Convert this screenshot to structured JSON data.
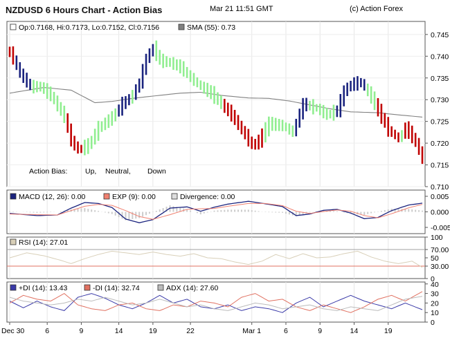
{
  "header": {
    "title": "NZDUSD 6 Hours Chart - Action Bias",
    "timestamp": "Mar 21 11:51 GMT",
    "copyright": "(c) Action Forex"
  },
  "chart_data": [
    {
      "type": "ohlc_bars",
      "panel": "price",
      "ohlc_label": "Op:0.7168, Hi:0.7173, Lo:0.7152, Cl:0.7156",
      "sma_label": "SMA (55): 0.73",
      "ylim": [
        0.71,
        0.748
      ],
      "yticks": [
        "0.745",
        "0.740",
        "0.735",
        "0.730",
        "0.725",
        "0.720",
        "0.715",
        "0.710"
      ],
      "bias_legend": {
        "label": "Action Bias:",
        "up": "Up,",
        "neutral": "Neutral,",
        "down": "Down"
      },
      "colors": {
        "up": "#1a237e",
        "neutral": "#90ee90",
        "down": "#c00000",
        "sma_solid": "#808080",
        "sma_dotted": "#404040"
      },
      "key_points": [
        [
          0,
          0.741
        ],
        [
          3,
          0.736
        ],
        [
          6,
          0.733
        ],
        [
          9,
          0.733
        ],
        [
          12,
          0.731
        ],
        [
          14,
          0.7285
        ],
        [
          16,
          0.726
        ],
        [
          18,
          0.7205
        ],
        [
          20,
          0.7185
        ],
        [
          23,
          0.7195
        ],
        [
          26,
          0.7235
        ],
        [
          30,
          0.726
        ],
        [
          33,
          0.729
        ],
        [
          36,
          0.731
        ],
        [
          38,
          0.734
        ],
        [
          40,
          0.7395
        ],
        [
          42,
          0.742
        ],
        [
          44,
          0.739
        ],
        [
          47,
          0.7385
        ],
        [
          50,
          0.7375
        ],
        [
          53,
          0.735
        ],
        [
          56,
          0.733
        ],
        [
          59,
          0.7315
        ],
        [
          62,
          0.729
        ],
        [
          65,
          0.7265
        ],
        [
          68,
          0.723
        ],
        [
          71,
          0.7195
        ],
        [
          73,
          0.7205
        ],
        [
          76,
          0.7245
        ],
        [
          80,
          0.724
        ],
        [
          83,
          0.7225
        ],
        [
          86,
          0.729
        ],
        [
          90,
          0.728
        ],
        [
          93,
          0.7265
        ],
        [
          96,
          0.7275
        ],
        [
          98,
          0.732
        ],
        [
          100,
          0.7335
        ],
        [
          103,
          0.734
        ],
        [
          106,
          0.7305
        ],
        [
          108,
          0.7275
        ],
        [
          111,
          0.723
        ],
        [
          114,
          0.721
        ],
        [
          116,
          0.7235
        ],
        [
          118,
          0.7215
        ],
        [
          120,
          0.7185
        ],
        [
          121,
          0.716
        ]
      ],
      "bias_segments": [
        [
          0,
          "down"
        ],
        [
          2,
          "up"
        ],
        [
          7,
          "neutral"
        ],
        [
          17,
          "down"
        ],
        [
          22,
          "neutral"
        ],
        [
          32,
          "up"
        ],
        [
          36,
          "neutral"
        ],
        [
          37,
          "up"
        ],
        [
          40,
          "up"
        ],
        [
          43,
          "neutral"
        ],
        [
          60,
          "neutral"
        ],
        [
          63,
          "down"
        ],
        [
          75,
          "neutral"
        ],
        [
          84,
          "up"
        ],
        [
          88,
          "neutral"
        ],
        [
          96,
          "up"
        ],
        [
          100,
          "up"
        ],
        [
          105,
          "neutral"
        ],
        [
          108,
          "down"
        ],
        [
          115,
          "neutral"
        ],
        [
          116,
          "down"
        ]
      ],
      "sma": [
        [
          0,
          0.7315
        ],
        [
          10,
          0.7328
        ],
        [
          18,
          0.7322
        ],
        [
          25,
          0.7293
        ],
        [
          30,
          0.7296
        ],
        [
          36,
          0.7303
        ],
        [
          44,
          0.731
        ],
        [
          50,
          0.7315
        ],
        [
          56,
          0.7317
        ],
        [
          62,
          0.731
        ],
        [
          70,
          0.7304
        ],
        [
          76,
          0.7303
        ],
        [
          82,
          0.7297
        ],
        [
          88,
          0.7288
        ],
        [
          94,
          0.7279
        ],
        [
          100,
          0.7272
        ],
        [
          108,
          0.727
        ],
        [
          114,
          0.7265
        ],
        [
          121,
          0.726
        ]
      ],
      "x_count": 122
    },
    {
      "type": "line",
      "panel": "macd",
      "legend": [
        "MACD (12, 26): 0.00",
        "EXP (9): 0.00",
        "Divergence: 0.00"
      ],
      "ylim": [
        -0.007,
        0.007
      ],
      "yticks": [
        "0.005",
        "0.000",
        "-0.005"
      ],
      "series": [
        {
          "name": "MACD (12, 26)",
          "color": "#1a237e",
          "points": [
            [
              0,
              -0.0005
            ],
            [
              8,
              -0.0012
            ],
            [
              14,
              -0.001
            ],
            [
              18,
              0.0012
            ],
            [
              22,
              0.003
            ],
            [
              26,
              0.0027
            ],
            [
              30,
              0.0014
            ],
            [
              34,
              -0.0023
            ],
            [
              38,
              -0.0035
            ],
            [
              42,
              -0.0025
            ],
            [
              47,
              0.0012
            ],
            [
              52,
              0.0016
            ],
            [
              56,
              0.0002
            ],
            [
              60,
              0.0015
            ],
            [
              64,
              0.0025
            ],
            [
              70,
              0.0034
            ],
            [
              75,
              0.0026
            ],
            [
              80,
              0.0017
            ],
            [
              84,
              -0.0012
            ],
            [
              88,
              -0.0007
            ],
            [
              92,
              0.0005
            ],
            [
              96,
              0.0008
            ],
            [
              100,
              -0.0004
            ],
            [
              104,
              -0.0022
            ],
            [
              108,
              -0.0018
            ],
            [
              112,
              0.0004
            ],
            [
              117,
              0.0022
            ],
            [
              121,
              0.0028
            ]
          ]
        },
        {
          "name": "EXP (9)",
          "color": "#f08070",
          "points": [
            [
              0,
              -0.0007
            ],
            [
              8,
              -0.0009
            ],
            [
              14,
              -0.001
            ],
            [
              18,
              0.0004
            ],
            [
              22,
              0.0018
            ],
            [
              26,
              0.0024
            ],
            [
              30,
              0.0021
            ],
            [
              34,
              0.0004
            ],
            [
              38,
              -0.0015
            ],
            [
              42,
              -0.0024
            ],
            [
              47,
              -0.0009
            ],
            [
              52,
              0.0008
            ],
            [
              56,
              0.001
            ],
            [
              60,
              0.0011
            ],
            [
              64,
              0.0018
            ],
            [
              70,
              0.0027
            ],
            [
              75,
              0.0027
            ],
            [
              80,
              0.002
            ],
            [
              84,
              0.0002
            ],
            [
              88,
              -0.0005
            ],
            [
              92,
              0.0001
            ],
            [
              96,
              0.0006
            ],
            [
              100,
              0.0002
            ],
            [
              104,
              -0.0012
            ],
            [
              108,
              -0.0019
            ],
            [
              112,
              -0.0006
            ],
            [
              117,
              0.0013
            ],
            [
              121,
              0.0024
            ]
          ]
        }
      ],
      "divergence_color": "#cccccc",
      "x_count": 122
    },
    {
      "type": "line",
      "panel": "rsi",
      "legend": [
        "RSI (14): 27.01"
      ],
      "ylim": [
        0,
        100
      ],
      "yticks": [
        "100",
        "70.00",
        "50",
        "30.00",
        "0"
      ],
      "levels": [
        70,
        30
      ],
      "series": [
        {
          "name": "RSI (14)",
          "color": "#d8cfb8",
          "points": [
            [
              0,
              50
            ],
            [
              5,
              62
            ],
            [
              10,
              55
            ],
            [
              15,
              44
            ],
            [
              18,
              36
            ],
            [
              22,
              48
            ],
            [
              26,
              58
            ],
            [
              30,
              66
            ],
            [
              34,
              62
            ],
            [
              38,
              58
            ],
            [
              42,
              64
            ],
            [
              46,
              58
            ],
            [
              50,
              54
            ],
            [
              54,
              60
            ],
            [
              58,
              50
            ],
            [
              62,
              48
            ],
            [
              66,
              40
            ],
            [
              70,
              34
            ],
            [
              74,
              42
            ],
            [
              78,
              58
            ],
            [
              82,
              48
            ],
            [
              86,
              60
            ],
            [
              90,
              50
            ],
            [
              94,
              52
            ],
            [
              98,
              60
            ],
            [
              102,
              66
            ],
            [
              106,
              52
            ],
            [
              110,
              42
            ],
            [
              114,
              36
            ],
            [
              118,
              42
            ],
            [
              121,
              27
            ]
          ]
        }
      ],
      "x_count": 122
    },
    {
      "type": "line",
      "panel": "adx",
      "legend": [
        "+DI (14): 13.43",
        "-DI (14): 32.74",
        "ADX (14): 27.60"
      ],
      "ylim": [
        0,
        42
      ],
      "yticks": [
        "40",
        "30",
        "20",
        "10",
        "0"
      ],
      "series": [
        {
          "name": "+DI (14)",
          "color": "#3a3aa8",
          "points": [
            [
              0,
              22
            ],
            [
              4,
              15
            ],
            [
              8,
              22
            ],
            [
              12,
              16
            ],
            [
              16,
              12
            ],
            [
              20,
              26
            ],
            [
              24,
              30
            ],
            [
              28,
              25
            ],
            [
              32,
              18
            ],
            [
              36,
              14
            ],
            [
              40,
              20
            ],
            [
              44,
              28
            ],
            [
              48,
              20
            ],
            [
              52,
              24
            ],
            [
              56,
              16
            ],
            [
              60,
              14
            ],
            [
              64,
              18
            ],
            [
              68,
              12
            ],
            [
              72,
              16
            ],
            [
              76,
              14
            ],
            [
              80,
              10
            ],
            [
              84,
              20
            ],
            [
              88,
              26
            ],
            [
              92,
              16
            ],
            [
              96,
              22
            ],
            [
              100,
              28
            ],
            [
              104,
              22
            ],
            [
              108,
              18
            ],
            [
              112,
              14
            ],
            [
              116,
              20
            ],
            [
              121,
              13
            ]
          ]
        },
        {
          "name": "-DI (14)",
          "color": "#e07060",
          "points": [
            [
              0,
              20
            ],
            [
              4,
              28
            ],
            [
              8,
              24
            ],
            [
              12,
              22
            ],
            [
              16,
              30
            ],
            [
              20,
              18
            ],
            [
              24,
              14
            ],
            [
              28,
              12
            ],
            [
              32,
              18
            ],
            [
              36,
              20
            ],
            [
              40,
              14
            ],
            [
              44,
              12
            ],
            [
              48,
              18
            ],
            [
              52,
              16
            ],
            [
              56,
              22
            ],
            [
              60,
              20
            ],
            [
              64,
              16
            ],
            [
              68,
              26
            ],
            [
              72,
              30
            ],
            [
              76,
              22
            ],
            [
              80,
              24
            ],
            [
              84,
              16
            ],
            [
              88,
              12
            ],
            [
              92,
              18
            ],
            [
              96,
              14
            ],
            [
              100,
              10
            ],
            [
              104,
              16
            ],
            [
              108,
              24
            ],
            [
              112,
              28
            ],
            [
              116,
              22
            ],
            [
              121,
              32
            ]
          ]
        },
        {
          "name": "ADX (14)",
          "color": "#bbbbbb",
          "points": [
            [
              0,
              26
            ],
            [
              4,
              22
            ],
            [
              8,
              20
            ],
            [
              12,
              18
            ],
            [
              16,
              20
            ],
            [
              20,
              24
            ],
            [
              24,
              22
            ],
            [
              28,
              26
            ],
            [
              32,
              22
            ],
            [
              36,
              18
            ],
            [
              40,
              20
            ],
            [
              44,
              24
            ],
            [
              48,
              20
            ],
            [
              52,
              16
            ],
            [
              56,
              18
            ],
            [
              60,
              14
            ],
            [
              64,
              12
            ],
            [
              68,
              16
            ],
            [
              72,
              20
            ],
            [
              76,
              18
            ],
            [
              80,
              14
            ],
            [
              84,
              16
            ],
            [
              88,
              18
            ],
            [
              92,
              14
            ],
            [
              96,
              12
            ],
            [
              100,
              16
            ],
            [
              104,
              14
            ],
            [
              108,
              12
            ],
            [
              112,
              18
            ],
            [
              116,
              24
            ],
            [
              121,
              27
            ]
          ]
        }
      ],
      "x_count": 122
    }
  ],
  "x_axis": {
    "labels": [
      {
        "i": 0,
        "text": "Dec 30"
      },
      {
        "i": 11,
        "text": "6"
      },
      {
        "i": 21,
        "text": "9"
      },
      {
        "i": 32,
        "text": "14"
      },
      {
        "i": 42,
        "text": "19"
      },
      {
        "i": 53,
        "text": "22"
      },
      {
        "i": 71,
        "text": "Mar 1"
      },
      {
        "i": 81,
        "text": "6"
      },
      {
        "i": 91,
        "text": "9"
      },
      {
        "i": 101,
        "text": "14"
      },
      {
        "i": 111,
        "text": "19"
      }
    ]
  }
}
